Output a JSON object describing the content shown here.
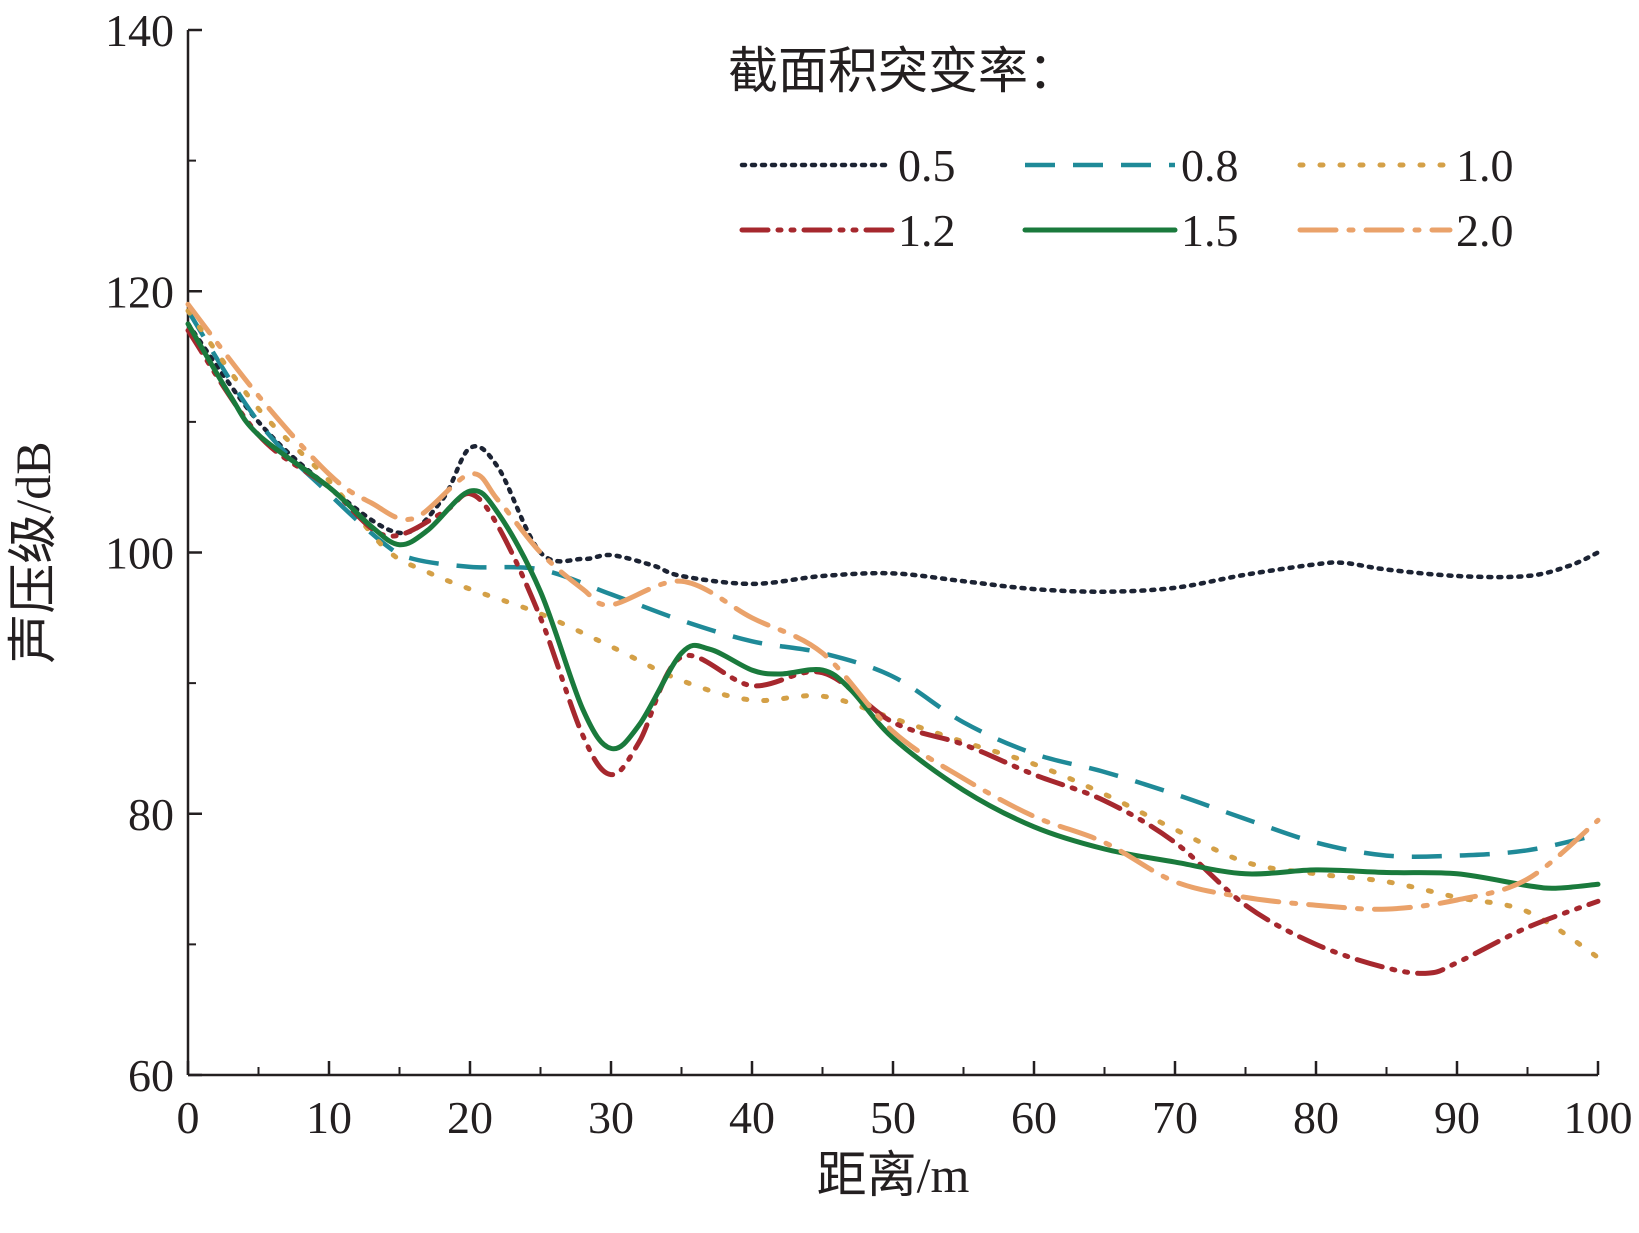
{
  "chart_data": {
    "type": "line",
    "xlabel": "距离/m",
    "ylabel": "声压级/dB",
    "xlim": [
      0,
      100
    ],
    "ylim": [
      60,
      140
    ],
    "xticks": [
      0,
      10,
      20,
      30,
      40,
      50,
      60,
      70,
      80,
      90,
      100
    ],
    "yticks": [
      60,
      80,
      100,
      120,
      140
    ],
    "xtick_labels": [
      "0",
      "10",
      "20",
      "30",
      "40",
      "50",
      "60",
      "70",
      "80",
      "90",
      "100"
    ],
    "ytick_labels": [
      "60",
      "80",
      "100",
      "120",
      "140"
    ],
    "grid": false,
    "legend": {
      "title": "截面积突变率：",
      "position": "top-right"
    },
    "series": [
      {
        "name": "0.5",
        "color": "#1c2333",
        "dash": "dotted",
        "points": [
          [
            0,
            117.5
          ],
          [
            5,
            110
          ],
          [
            10,
            105
          ],
          [
            15,
            101.5
          ],
          [
            18,
            104
          ],
          [
            20,
            108
          ],
          [
            22,
            106.5
          ],
          [
            25,
            100
          ],
          [
            28,
            99.5
          ],
          [
            30,
            99.8
          ],
          [
            33,
            99
          ],
          [
            35,
            98.2
          ],
          [
            40,
            97.6
          ],
          [
            45,
            98.2
          ],
          [
            50,
            98.4
          ],
          [
            55,
            97.8
          ],
          [
            60,
            97.2
          ],
          [
            65,
            97
          ],
          [
            70,
            97.3
          ],
          [
            75,
            98.3
          ],
          [
            80,
            99.1
          ],
          [
            82,
            99.2
          ],
          [
            85,
            98.7
          ],
          [
            90,
            98.2
          ],
          [
            95,
            98.2
          ],
          [
            98,
            99
          ],
          [
            100,
            100
          ]
        ]
      },
      {
        "name": "0.8",
        "color": "#1f8a98",
        "dash": "dashed",
        "points": [
          [
            0,
            118.5
          ],
          [
            5,
            110
          ],
          [
            10,
            104.5
          ],
          [
            14,
            100.6
          ],
          [
            16,
            99.5
          ],
          [
            20,
            98.9
          ],
          [
            25,
            98.7
          ],
          [
            30,
            96.8
          ],
          [
            35,
            94.8
          ],
          [
            40,
            93.2
          ],
          [
            45,
            92.3
          ],
          [
            50,
            90.5
          ],
          [
            55,
            87
          ],
          [
            60,
            84.6
          ],
          [
            65,
            83.2
          ],
          [
            70,
            81.5
          ],
          [
            75,
            79.6
          ],
          [
            80,
            77.8
          ],
          [
            85,
            76.8
          ],
          [
            90,
            76.8
          ],
          [
            95,
            77.2
          ],
          [
            100,
            78.4
          ]
        ]
      },
      {
        "name": "1.0",
        "color": "#d4a047",
        "dash": "dotted-sparse",
        "points": [
          [
            0,
            118.5
          ],
          [
            5,
            111
          ],
          [
            10,
            105.5
          ],
          [
            14,
            100.3
          ],
          [
            17,
            98.5
          ],
          [
            20,
            97.2
          ],
          [
            25,
            95.3
          ],
          [
            30,
            92.8
          ],
          [
            35,
            90.2
          ],
          [
            40,
            88.7
          ],
          [
            45,
            89
          ],
          [
            50,
            87.3
          ],
          [
            55,
            85.5
          ],
          [
            60,
            83.8
          ],
          [
            65,
            81.5
          ],
          [
            70,
            78.8
          ],
          [
            75,
            76.3
          ],
          [
            80,
            75.4
          ],
          [
            85,
            74.8
          ],
          [
            90,
            73.6
          ],
          [
            95,
            72.5
          ],
          [
            100,
            69
          ]
        ]
      },
      {
        "name": "1.2",
        "color": "#a6282e",
        "dash": "dash-dot-dot",
        "points": [
          [
            0,
            117
          ],
          [
            5,
            109
          ],
          [
            10,
            105
          ],
          [
            14,
            101.3
          ],
          [
            18,
            103
          ],
          [
            20,
            104.5
          ],
          [
            22,
            102
          ],
          [
            25,
            95
          ],
          [
            28,
            86
          ],
          [
            30,
            83
          ],
          [
            32,
            85.5
          ],
          [
            35,
            92
          ],
          [
            40,
            89.8
          ],
          [
            45,
            90.8
          ],
          [
            50,
            87
          ],
          [
            55,
            85.3
          ],
          [
            60,
            83
          ],
          [
            65,
            81
          ],
          [
            70,
            77.8
          ],
          [
            75,
            73
          ],
          [
            80,
            70
          ],
          [
            85,
            68.2
          ],
          [
            88,
            67.8
          ],
          [
            90,
            68.6
          ],
          [
            95,
            71.3
          ],
          [
            100,
            73.3
          ]
        ]
      },
      {
        "name": "1.5",
        "color": "#1a7a3c",
        "dash": "solid",
        "points": [
          [
            0,
            117.5
          ],
          [
            3,
            112
          ],
          [
            5,
            109
          ],
          [
            10,
            105
          ],
          [
            13,
            102
          ],
          [
            15,
            100.6
          ],
          [
            17,
            101.7
          ],
          [
            20,
            104.7
          ],
          [
            22,
            103
          ],
          [
            25,
            97
          ],
          [
            28,
            88
          ],
          [
            30,
            85
          ],
          [
            32,
            86.8
          ],
          [
            35,
            92.3
          ],
          [
            37,
            92.6
          ],
          [
            40,
            91
          ],
          [
            42,
            90.7
          ],
          [
            45,
            91
          ],
          [
            47,
            89.5
          ],
          [
            50,
            85.8
          ],
          [
            55,
            81.8
          ],
          [
            60,
            79
          ],
          [
            65,
            77.3
          ],
          [
            70,
            76.3
          ],
          [
            75,
            75.4
          ],
          [
            80,
            75.7
          ],
          [
            85,
            75.5
          ],
          [
            90,
            75.4
          ],
          [
            95,
            74.5
          ],
          [
            97,
            74.3
          ],
          [
            100,
            74.6
          ]
        ]
      },
      {
        "name": "2.0",
        "color": "#eaa26a",
        "dash": "dash-dot",
        "points": [
          [
            0,
            119
          ],
          [
            5,
            112
          ],
          [
            10,
            106
          ],
          [
            13,
            103.8
          ],
          [
            16,
            102.6
          ],
          [
            20,
            106
          ],
          [
            22,
            104
          ],
          [
            25,
            100
          ],
          [
            28,
            97.2
          ],
          [
            30,
            96
          ],
          [
            35,
            97.8
          ],
          [
            40,
            95
          ],
          [
            45,
            92.3
          ],
          [
            50,
            86.3
          ],
          [
            55,
            82.7
          ],
          [
            60,
            79.8
          ],
          [
            65,
            77.8
          ],
          [
            70,
            74.8
          ],
          [
            75,
            73.6
          ],
          [
            80,
            73
          ],
          [
            85,
            72.7
          ],
          [
            90,
            73.4
          ],
          [
            95,
            75
          ],
          [
            100,
            79.5
          ]
        ]
      }
    ]
  }
}
